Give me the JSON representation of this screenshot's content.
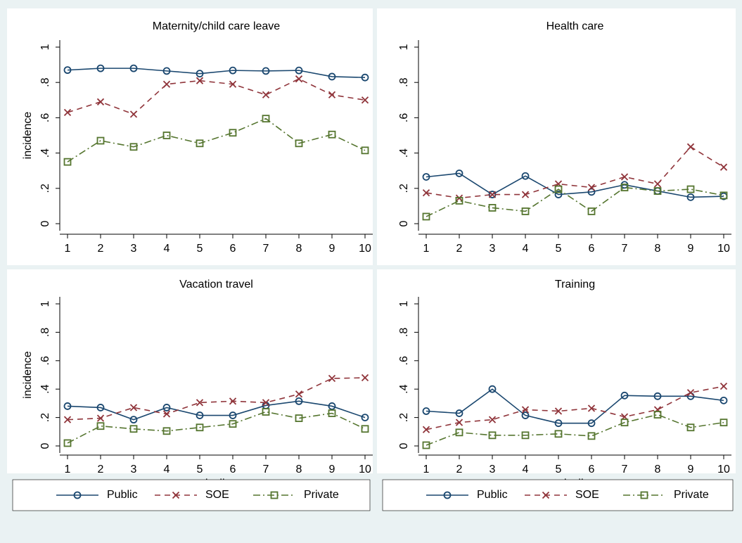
{
  "chart_data": [
    {
      "type": "line",
      "title": "Maternity/child care leave",
      "y_label": "incidence",
      "x": [
        1,
        2,
        3,
        4,
        5,
        6,
        7,
        8,
        9,
        10
      ],
      "xlim": [
        1,
        10
      ],
      "xticks": [
        1,
        2,
        3,
        4,
        5,
        6,
        7,
        8,
        9,
        10
      ],
      "ylim": [
        0,
        1
      ],
      "yticks": [
        0,
        {
          "value": 0.2,
          "label": ".2"
        },
        {
          "value": 0.4,
          "label": ".4"
        },
        {
          "value": 0.6,
          "label": ".6"
        },
        {
          "value": 0.8,
          "label": ".8"
        },
        1
      ],
      "legend": false,
      "series": [
        {
          "name": "Public",
          "color": "#1a476f",
          "values": [
            0.87,
            0.88,
            0.88,
            0.865,
            0.85,
            0.868,
            0.865,
            0.868,
            0.833,
            0.828
          ]
        },
        {
          "name": "SOE",
          "color": "#90353b",
          "values": [
            0.63,
            0.69,
            0.62,
            0.79,
            0.81,
            0.79,
            0.73,
            0.82,
            0.73,
            0.7
          ]
        },
        {
          "name": "Private",
          "color": "#55752f",
          "values": [
            0.35,
            0.47,
            0.435,
            0.5,
            0.455,
            0.515,
            0.595,
            0.455,
            0.505,
            0.415
          ]
        }
      ]
    },
    {
      "type": "line",
      "title": "Health care",
      "x": [
        1,
        2,
        3,
        4,
        5,
        6,
        7,
        8,
        9,
        10
      ],
      "xlim": [
        1,
        10
      ],
      "xticks": [
        1,
        2,
        3,
        4,
        5,
        6,
        7,
        8,
        9,
        10
      ],
      "ylim": [
        0,
        1
      ],
      "yticks": [
        0,
        {
          "value": 0.2,
          "label": ".2"
        },
        {
          "value": 0.4,
          "label": ".4"
        },
        {
          "value": 0.6,
          "label": ".6"
        },
        {
          "value": 0.8,
          "label": ".8"
        },
        1
      ],
      "legend": false,
      "series": [
        {
          "name": "Public",
          "color": "#1a476f",
          "values": [
            0.265,
            0.285,
            0.165,
            0.27,
            0.165,
            0.18,
            0.22,
            0.185,
            0.15,
            0.155
          ]
        },
        {
          "name": "SOE",
          "color": "#90353b",
          "values": [
            0.175,
            0.145,
            0.165,
            0.165,
            0.225,
            0.205,
            0.265,
            0.225,
            0.435,
            0.32
          ]
        },
        {
          "name": "Private",
          "color": "#55752f",
          "values": [
            0.04,
            0.13,
            0.09,
            0.07,
            0.195,
            0.07,
            0.205,
            0.185,
            0.195,
            0.16
          ]
        }
      ]
    },
    {
      "type": "line",
      "title": "Vacation travel",
      "y_label": "incidence",
      "x_label": "decile",
      "x": [
        1,
        2,
        3,
        4,
        5,
        6,
        7,
        8,
        9,
        10
      ],
      "xlim": [
        1,
        10
      ],
      "xticks": [
        1,
        2,
        3,
        4,
        5,
        6,
        7,
        8,
        9,
        10
      ],
      "ylim": [
        0,
        1
      ],
      "yticks": [
        0,
        {
          "value": 0.2,
          "label": ".2"
        },
        {
          "value": 0.4,
          "label": ".4"
        },
        {
          "value": 0.6,
          "label": ".6"
        },
        {
          "value": 0.8,
          "label": ".8"
        },
        1
      ],
      "legend": true,
      "series": [
        {
          "name": "Public",
          "color": "#1a476f",
          "values": [
            0.28,
            0.27,
            0.185,
            0.27,
            0.215,
            0.215,
            0.285,
            0.315,
            0.28,
            0.2
          ]
        },
        {
          "name": "SOE",
          "color": "#90353b",
          "values": [
            0.185,
            0.195,
            0.27,
            0.225,
            0.305,
            0.315,
            0.305,
            0.365,
            0.475,
            0.48
          ]
        },
        {
          "name": "Private",
          "color": "#55752f",
          "values": [
            0.02,
            0.14,
            0.12,
            0.105,
            0.13,
            0.155,
            0.24,
            0.195,
            0.23,
            0.12
          ]
        }
      ]
    },
    {
      "type": "line",
      "title": "Training",
      "x_label": "decile",
      "x": [
        1,
        2,
        3,
        4,
        5,
        6,
        7,
        8,
        9,
        10
      ],
      "xlim": [
        1,
        10
      ],
      "xticks": [
        1,
        2,
        3,
        4,
        5,
        6,
        7,
        8,
        9,
        10
      ],
      "ylim": [
        0,
        1
      ],
      "yticks": [
        0,
        {
          "value": 0.2,
          "label": ".2"
        },
        {
          "value": 0.4,
          "label": ".4"
        },
        {
          "value": 0.6,
          "label": ".6"
        },
        {
          "value": 0.8,
          "label": ".8"
        },
        1
      ],
      "legend": true,
      "series": [
        {
          "name": "Public",
          "color": "#1a476f",
          "values": [
            0.245,
            0.23,
            0.4,
            0.215,
            0.16,
            0.16,
            0.355,
            0.35,
            0.35,
            0.32
          ]
        },
        {
          "name": "SOE",
          "color": "#90353b",
          "values": [
            0.115,
            0.165,
            0.185,
            0.255,
            0.245,
            0.265,
            0.205,
            0.255,
            0.375,
            0.42
          ]
        },
        {
          "name": "Private",
          "color": "#55752f",
          "values": [
            0.005,
            0.095,
            0.075,
            0.075,
            0.085,
            0.07,
            0.165,
            0.22,
            0.13,
            0.165
          ]
        }
      ]
    }
  ]
}
